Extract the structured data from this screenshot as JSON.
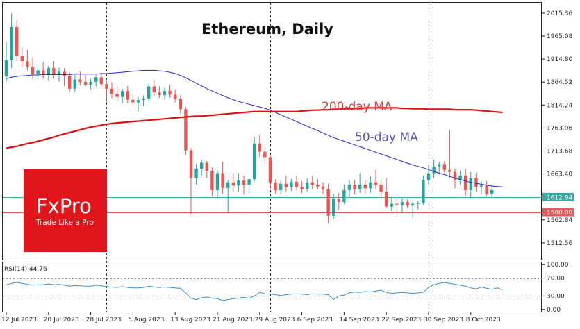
{
  "chart_data": [
    {
      "type": "candlestick",
      "title": "Ethereum, Daily",
      "y_ticks": [
        "2015.36",
        "1965.08",
        "1914.80",
        "1864.52",
        "1814.24",
        "1763.96",
        "1713.68",
        "1663.40",
        "1612.94",
        "1562.84",
        "1512.56"
      ],
      "ylim": [
        1476,
        2038
      ],
      "x_labels": [
        {
          "label": "12 Jul 2023",
          "index": 0
        },
        {
          "label": "20 Jul 2023",
          "index": 8
        },
        {
          "label": "28 Jul 2023",
          "index": 16
        },
        {
          "label": "5 Aug 2023",
          "index": 24
        },
        {
          "label": "13 Aug 2023",
          "index": 32
        },
        {
          "label": "21 Aug 2023",
          "index": 40
        },
        {
          "label": "29 Aug 2023",
          "index": 48
        },
        {
          "label": "6 Sep 2023",
          "index": 56
        },
        {
          "label": "14 Sep 2023",
          "index": 64
        },
        {
          "label": "22 Sep 2023",
          "index": 72
        },
        {
          "label": "30 Sep 2023",
          "index": 80
        },
        {
          "label": "8 Oct 2023",
          "index": 88
        }
      ],
      "vertical_separators": [
        19,
        50,
        80
      ],
      "candles": [
        [
          1877,
          1952,
          1866,
          1912
        ],
        [
          1912,
          2015,
          1895,
          1985
        ],
        [
          1985,
          2000,
          1910,
          1922
        ],
        [
          1922,
          1942,
          1898,
          1910
        ],
        [
          1910,
          1935,
          1890,
          1898
        ],
        [
          1898,
          1918,
          1870,
          1882
        ],
        [
          1882,
          1905,
          1870,
          1890
        ],
        [
          1890,
          1908,
          1872,
          1880
        ],
        [
          1880,
          1900,
          1868,
          1895
        ],
        [
          1895,
          1910,
          1872,
          1881
        ],
        [
          1881,
          1896,
          1866,
          1887
        ],
        [
          1887,
          1895,
          1855,
          1878
        ],
        [
          1878,
          1885,
          1843,
          1850
        ],
        [
          1850,
          1880,
          1843,
          1870
        ],
        [
          1870,
          1888,
          1858,
          1865
        ],
        [
          1865,
          1880,
          1855,
          1858
        ],
        [
          1858,
          1872,
          1848,
          1865
        ],
        [
          1865,
          1880,
          1855,
          1875
        ],
        [
          1875,
          1885,
          1855,
          1860
        ],
        [
          1860,
          1868,
          1820,
          1850
        ],
        [
          1850,
          1864,
          1830,
          1838
        ],
        [
          1838,
          1856,
          1822,
          1832
        ],
        [
          1832,
          1850,
          1818,
          1845
        ],
        [
          1845,
          1856,
          1818,
          1826
        ],
        [
          1826,
          1838,
          1812,
          1820
        ],
        [
          1820,
          1832,
          1800,
          1825
        ],
        [
          1825,
          1835,
          1812,
          1828
        ],
        [
          1828,
          1862,
          1820,
          1855
        ],
        [
          1855,
          1870,
          1834,
          1842
        ],
        [
          1842,
          1855,
          1830,
          1836
        ],
        [
          1836,
          1852,
          1826,
          1845
        ],
        [
          1845,
          1858,
          1830,
          1837
        ],
        [
          1837,
          1848,
          1820,
          1827
        ],
        [
          1827,
          1835,
          1795,
          1805
        ],
        [
          1805,
          1810,
          1705,
          1715
        ],
        [
          1715,
          1720,
          1575,
          1655
        ],
        [
          1655,
          1685,
          1640,
          1675
        ],
        [
          1675,
          1695,
          1660,
          1688
        ],
        [
          1688,
          1692,
          1655,
          1670
        ],
        [
          1670,
          1678,
          1615,
          1628
        ],
        [
          1628,
          1672,
          1610,
          1665
        ],
        [
          1665,
          1690,
          1620,
          1633
        ],
        [
          1633,
          1650,
          1580,
          1645
        ],
        [
          1645,
          1665,
          1625,
          1638
        ],
        [
          1638,
          1665,
          1625,
          1649
        ],
        [
          1649,
          1660,
          1618,
          1640
        ],
        [
          1640,
          1650,
          1620,
          1652
        ],
        [
          1652,
          1745,
          1648,
          1730
        ],
        [
          1730,
          1748,
          1700,
          1712
        ],
        [
          1712,
          1722,
          1685,
          1700
        ],
        [
          1700,
          1705,
          1630,
          1645
        ],
        [
          1645,
          1652,
          1620,
          1628
        ],
        [
          1628,
          1650,
          1618,
          1642
        ],
        [
          1642,
          1660,
          1625,
          1635
        ],
        [
          1635,
          1652,
          1626,
          1646
        ],
        [
          1646,
          1660,
          1628,
          1635
        ],
        [
          1635,
          1648,
          1622,
          1630
        ],
        [
          1630,
          1655,
          1625,
          1645
        ],
        [
          1645,
          1660,
          1630,
          1640
        ],
        [
          1640,
          1652,
          1630,
          1636
        ],
        [
          1636,
          1645,
          1620,
          1630
        ],
        [
          1630,
          1642,
          1555,
          1572
        ],
        [
          1572,
          1620,
          1565,
          1610
        ],
        [
          1610,
          1622,
          1585,
          1602
        ],
        [
          1602,
          1640,
          1598,
          1628
        ],
        [
          1628,
          1650,
          1612,
          1640
        ],
        [
          1640,
          1650,
          1618,
          1630
        ],
        [
          1630,
          1665,
          1622,
          1640
        ],
        [
          1640,
          1650,
          1620,
          1632
        ],
        [
          1632,
          1658,
          1622,
          1645
        ],
        [
          1645,
          1672,
          1630,
          1640
        ],
        [
          1640,
          1650,
          1612,
          1625
        ],
        [
          1625,
          1655,
          1590,
          1592
        ],
        [
          1592,
          1612,
          1582,
          1598
        ],
        [
          1598,
          1610,
          1580,
          1595
        ],
        [
          1595,
          1610,
          1578,
          1602
        ],
        [
          1602,
          1608,
          1590,
          1594
        ],
        [
          1594,
          1602,
          1568,
          1598
        ],
        [
          1598,
          1605,
          1586,
          1600
        ],
        [
          1600,
          1660,
          1595,
          1650
        ],
        [
          1650,
          1685,
          1640,
          1665
        ],
        [
          1665,
          1695,
          1655,
          1680
        ],
        [
          1680,
          1690,
          1662,
          1685
        ],
        [
          1685,
          1692,
          1665,
          1672
        ],
        [
          1672,
          1760,
          1655,
          1668
        ],
        [
          1668,
          1675,
          1632,
          1650
        ],
        [
          1650,
          1670,
          1640,
          1660
        ],
        [
          1660,
          1675,
          1615,
          1628
        ],
        [
          1628,
          1668,
          1612,
          1655
        ],
        [
          1655,
          1665,
          1625,
          1635
        ],
        [
          1635,
          1648,
          1618,
          1638
        ],
        [
          1638,
          1648,
          1615,
          1620
        ],
        [
          1620,
          1640,
          1612,
          1628
        ]
      ],
      "series": [
        {
          "name": "50-day MA",
          "color": "#2222cc",
          "values": [
            1872,
            1875,
            1877,
            1878,
            1879,
            1880,
            1880,
            1881,
            1881,
            1881,
            1881,
            1881,
            1881,
            1882,
            1882,
            1882,
            1882,
            1882,
            1883,
            1883,
            1884,
            1885,
            1886,
            1887,
            1888,
            1889,
            1890,
            1890,
            1890,
            1889,
            1888,
            1886,
            1883,
            1879,
            1874,
            1868,
            1862,
            1856,
            1850,
            1845,
            1840,
            1835,
            1830,
            1826,
            1822,
            1819,
            1816,
            1813,
            1810,
            1807,
            1803,
            1798,
            1793,
            1788,
            1783,
            1778,
            1773,
            1768,
            1763,
            1758,
            1753,
            1748,
            1743,
            1739,
            1735,
            1731,
            1727,
            1723,
            1719,
            1715,
            1711,
            1707,
            1703,
            1699,
            1695,
            1691,
            1687,
            1683,
            1680,
            1677,
            1673,
            1669,
            1665,
            1662,
            1658,
            1655,
            1651,
            1648,
            1645,
            1643,
            1641,
            1639,
            1637,
            1636,
            1635
          ]
        },
        {
          "name": "200-day MA",
          "color": "#dd1111",
          "values": [
            1720,
            1722,
            1724,
            1727,
            1730,
            1732,
            1735,
            1738,
            1741,
            1744,
            1748,
            1751,
            1754,
            1757,
            1760,
            1763,
            1766,
            1768,
            1770,
            1772,
            1774,
            1775,
            1776,
            1777,
            1778,
            1779,
            1780,
            1781,
            1782,
            1783,
            1784,
            1785,
            1786,
            1787,
            1788,
            1789,
            1790,
            1790,
            1791,
            1792,
            1793,
            1794,
            1795,
            1796,
            1797,
            1798,
            1799,
            1800,
            1800,
            1800,
            1800,
            1800,
            1800,
            1800,
            1800,
            1800,
            1801,
            1802,
            1803,
            1803,
            1804,
            1804,
            1805,
            1805,
            1806,
            1806,
            1807,
            1807,
            1808,
            1808,
            1808,
            1808,
            1808,
            1808,
            1808,
            1807,
            1807,
            1806,
            1806,
            1806,
            1805,
            1805,
            1805,
            1805,
            1805,
            1804,
            1804,
            1804,
            1804,
            1803,
            1802,
            1801,
            1800,
            1799,
            1798
          ]
        }
      ],
      "annotations": [
        {
          "text": "200-day MA",
          "color": "#d93a3a"
        },
        {
          "text": "50-day MA",
          "color": "#5555bb"
        }
      ],
      "price_labels": [
        {
          "text": "1612.94",
          "value": 1612.94,
          "color": "#3aa7a0"
        },
        {
          "text": "1580.00",
          "value": 1580.0,
          "color": "#e35a5a"
        }
      ],
      "up_color": "#26a69a",
      "down_color": "#ef5350"
    },
    {
      "type": "line",
      "title": "RSI(14) 44.76",
      "y_ticks": [
        "100.00",
        "70.00",
        "30.00",
        "0.00"
      ],
      "ylim": [
        -5,
        105
      ],
      "levels": [
        70,
        30
      ],
      "series": [
        {
          "name": "RSI(14)",
          "color": "#3a8fd0",
          "values": [
            55,
            58,
            60,
            58,
            56,
            54,
            55,
            55,
            57,
            55,
            56,
            54,
            52,
            53,
            53,
            52,
            52,
            54,
            53,
            51,
            50,
            49,
            51,
            49,
            48,
            48,
            49,
            52,
            50,
            49,
            50,
            49,
            48,
            47,
            37,
            25,
            22,
            26,
            28,
            25,
            24,
            20,
            22,
            24,
            25,
            27,
            25,
            30,
            38,
            35,
            34,
            33,
            31,
            33,
            34,
            35,
            34,
            33,
            35,
            34,
            34,
            33,
            22,
            30,
            32,
            37,
            39,
            38,
            40,
            39,
            41,
            43,
            38,
            36,
            37,
            38,
            37,
            36,
            37,
            38,
            49,
            55,
            58,
            60,
            58,
            56,
            54,
            52,
            48,
            46,
            50,
            47,
            45,
            48,
            44
          ]
        }
      ]
    }
  ],
  "logo": {
    "brand": "FxPro",
    "tagline": "Trade Like a Pro",
    "background": "#e1161c"
  }
}
